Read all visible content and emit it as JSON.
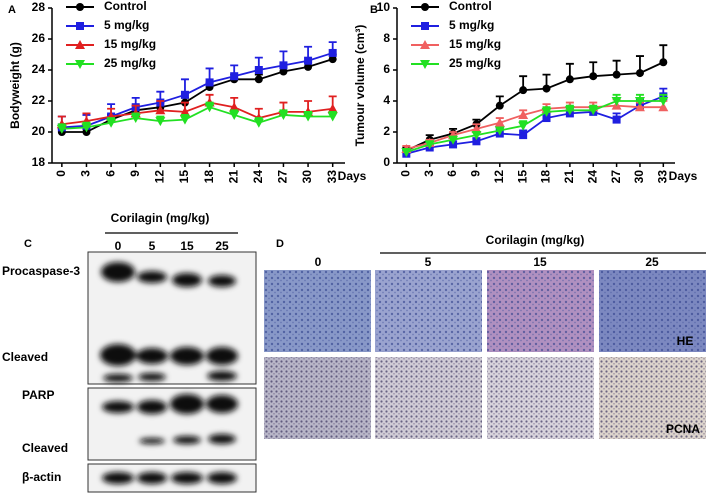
{
  "chart_data": [
    {
      "type": "line",
      "panel": "A",
      "ylabel": "Bodyweight (g)",
      "xlabel": "Days",
      "x": [
        0,
        3,
        6,
        9,
        12,
        15,
        18,
        21,
        24,
        27,
        30,
        33
      ],
      "xlim": [
        -1.2,
        34.5
      ],
      "xticks": [
        0,
        3,
        6,
        9,
        12,
        15,
        18,
        21,
        24,
        27,
        30,
        33
      ],
      "ylim": [
        18,
        28
      ],
      "yticks": [
        18,
        20,
        22,
        24,
        26,
        28
      ],
      "legend": "upper left",
      "series": [
        {
          "name": "Control",
          "color": "#000000",
          "marker": "circle",
          "values": [
            20.0,
            20.0,
            20.8,
            21.4,
            21.6,
            21.9,
            22.9,
            23.4,
            23.4,
            23.9,
            24.2,
            24.7
          ],
          "errors": [
            0.2,
            0.2,
            0.3,
            0.3,
            0.3,
            0.3,
            0.3,
            0.3,
            0.3,
            0.3,
            0.3,
            0.3
          ]
        },
        {
          "name": "5 mg/kg",
          "color": "#1f1fe0",
          "marker": "square",
          "values": [
            20.3,
            20.4,
            21.0,
            21.6,
            21.9,
            22.4,
            23.2,
            23.6,
            24.0,
            24.3,
            24.6,
            25.1
          ],
          "errors": [
            0.7,
            0.7,
            0.8,
            0.6,
            0.7,
            1.0,
            0.9,
            0.7,
            0.8,
            0.9,
            0.9,
            0.7
          ]
        },
        {
          "name": "15 mg/kg",
          "color": "#e02020",
          "marker": "triangle",
          "values": [
            20.5,
            20.7,
            21.0,
            21.2,
            21.4,
            21.3,
            21.9,
            21.6,
            20.9,
            21.3,
            21.3,
            21.5
          ],
          "errors": [
            0.5,
            0.5,
            0.5,
            0.5,
            0.6,
            0.6,
            0.5,
            0.6,
            0.6,
            0.6,
            0.7,
            0.8
          ]
        },
        {
          "name": "25 mg/kg",
          "color": "#22e022",
          "marker": "triangle-down",
          "values": [
            20.2,
            20.3,
            20.6,
            20.9,
            20.7,
            20.8,
            21.6,
            21.1,
            20.6,
            21.1,
            21.0,
            21.0
          ],
          "errors": [
            0.3,
            0.3,
            0.3,
            0.3,
            0.3,
            0.3,
            0.3,
            0.3,
            0.3,
            0.3,
            0.3,
            0.3
          ]
        }
      ]
    },
    {
      "type": "line",
      "panel": "B",
      "ylabel": "Tumour volume (cm³)",
      "xlabel": "Days",
      "x": [
        0,
        3,
        6,
        9,
        12,
        15,
        18,
        21,
        24,
        27,
        30,
        33
      ],
      "xlim": [
        -1.2,
        34.5
      ],
      "xticks": [
        0,
        3,
        6,
        9,
        12,
        15,
        18,
        21,
        24,
        27,
        30,
        33
      ],
      "ylim": [
        0,
        10
      ],
      "yticks": [
        0,
        2,
        4,
        6,
        8,
        10
      ],
      "legend": "upper left",
      "series": [
        {
          "name": "Control",
          "color": "#000000",
          "marker": "circle",
          "values": [
            0.8,
            1.5,
            1.9,
            2.5,
            3.7,
            4.7,
            4.8,
            5.4,
            5.6,
            5.7,
            5.8,
            6.5
          ],
          "errors": [
            0.2,
            0.3,
            0.3,
            0.3,
            0.6,
            0.9,
            0.9,
            1.0,
            0.9,
            0.9,
            1.1,
            1.1
          ]
        },
        {
          "name": "5 mg/kg",
          "color": "#1f1fe0",
          "marker": "square",
          "values": [
            0.6,
            1.0,
            1.2,
            1.4,
            1.9,
            1.8,
            2.9,
            3.2,
            3.3,
            2.8,
            3.7,
            4.3
          ],
          "errors": [
            0.2,
            0.2,
            0.2,
            0.2,
            0.3,
            0.3,
            0.3,
            0.3,
            0.3,
            0.4,
            0.4,
            0.5
          ]
        },
        {
          "name": "15 mg/kg",
          "color": "#f06060",
          "marker": "triangle",
          "values": [
            0.9,
            1.3,
            1.8,
            2.2,
            2.6,
            3.1,
            3.5,
            3.6,
            3.6,
            3.7,
            3.6,
            3.6
          ],
          "errors": [
            0.2,
            0.2,
            0.2,
            0.3,
            0.3,
            0.3,
            0.3,
            0.3,
            0.3,
            0.4,
            0.3,
            0.4
          ]
        },
        {
          "name": "25 mg/kg",
          "color": "#22e022",
          "marker": "triangle-down",
          "values": [
            0.7,
            1.2,
            1.5,
            1.8,
            2.1,
            2.4,
            3.3,
            3.4,
            3.4,
            4.0,
            4.0,
            4.0
          ],
          "errors": [
            0.2,
            0.2,
            0.2,
            0.2,
            0.2,
            0.3,
            0.3,
            0.3,
            0.3,
            0.4,
            0.4,
            0.4
          ]
        }
      ]
    }
  ],
  "blot": {
    "panel": "C",
    "header": "Corilagin (mg/kg)",
    "lanes": [
      "0",
      "5",
      "15",
      "25"
    ],
    "rows": [
      "Procaspase-3",
      "Cleaved",
      "PARP",
      "Cleaved",
      "β-actin"
    ]
  },
  "histology": {
    "panel": "D",
    "header": "Corilagin (mg/kg)",
    "lanes": [
      "0",
      "5",
      "15",
      "25"
    ],
    "stains": [
      "HE",
      "PCNA"
    ]
  }
}
